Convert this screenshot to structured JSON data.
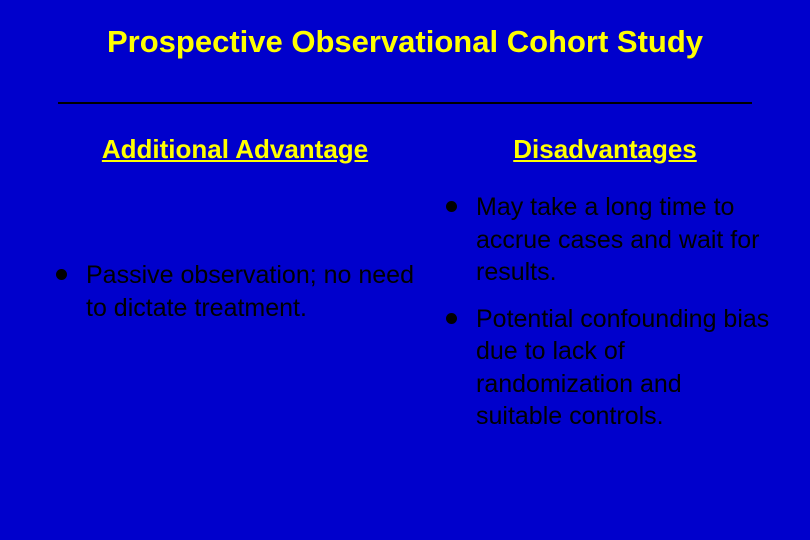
{
  "type": "presentation-slide",
  "background_color": "#0000cc",
  "heading_color": "#ffff00",
  "body_text_color": "#000000",
  "divider_color": "#000000",
  "title_fontsize": 31,
  "heading_fontsize": 26,
  "body_fontsize": 25,
  "bullet_diameter": 11,
  "title": "Prospective Observational Cohort Study",
  "left": {
    "heading": "Additional Advantage",
    "items": [
      "Passive observation; no need to dictate treatment."
    ]
  },
  "right": {
    "heading": "Disadvantages",
    "items": [
      "May take a long time to accrue cases and wait for results.",
      "Potential confounding bias due to lack of randomization and suitable controls."
    ]
  }
}
